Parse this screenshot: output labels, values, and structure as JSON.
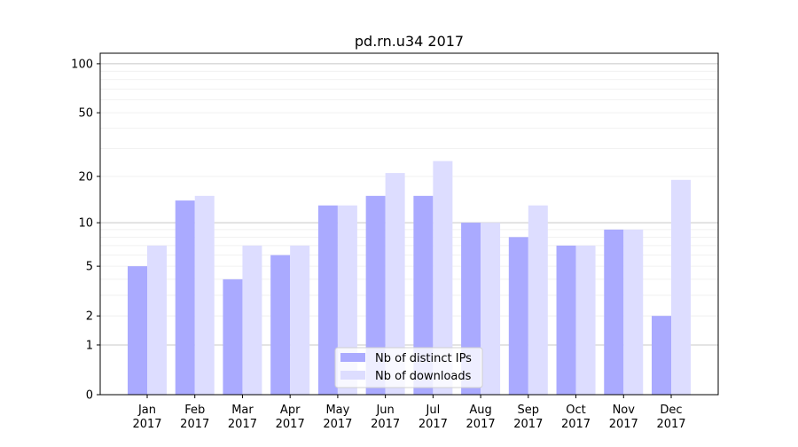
{
  "chart_data": {
    "type": "bar",
    "title": "pd.rn.u34 2017",
    "xlabel": "",
    "ylabel": "",
    "yscale": "symlog (log10(1+y))",
    "ylim": [
      0,
      116
    ],
    "yticks": [
      0,
      1,
      2,
      5,
      10,
      20,
      50,
      100
    ],
    "grid": true,
    "legend_position": "lower-center",
    "categories": [
      "Jan\n2017",
      "Feb\n2017",
      "Mar\n2017",
      "Apr\n2017",
      "May\n2017",
      "Jun\n2017",
      "Jul\n2017",
      "Aug\n2017",
      "Sep\n2017",
      "Oct\n2017",
      "Nov\n2017",
      "Dec\n2017"
    ],
    "series": [
      {
        "name": "Nb of distinct IPs",
        "color": "#aaaaff",
        "values": [
          5,
          14,
          4,
          6,
          13,
          15,
          15,
          10,
          8,
          7,
          9,
          2
        ]
      },
      {
        "name": "Nb of downloads",
        "color": "#ddddff",
        "values": [
          7,
          15,
          7,
          7,
          13,
          21,
          25,
          10,
          13,
          7,
          9,
          19
        ]
      }
    ]
  }
}
